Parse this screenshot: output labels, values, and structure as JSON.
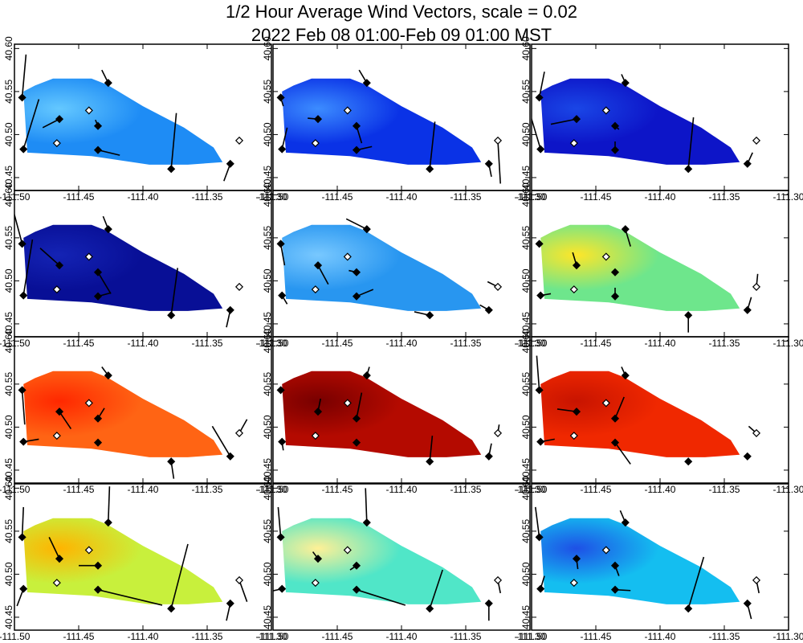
{
  "title": {
    "line1": "1/2 Hour Average Wind Vectors, scale =  0.02",
    "line2": "2022 Feb 08 01:00-Feb 09 01:00 MST"
  },
  "chart_data": {
    "type": "wind-vector-field-panels",
    "rows": 4,
    "cols": 3,
    "xlim": [
      -111.5,
      -111.3
    ],
    "ylim": [
      40.435,
      40.605
    ],
    "xticks": [
      -111.5,
      -111.45,
      -111.4,
      -111.35,
      -111.3
    ],
    "xtick_labels": [
      "-111.50",
      "-111.45",
      "-111.40",
      "-111.35",
      "-111.30"
    ],
    "yticks": [
      40.45,
      40.5,
      40.55,
      40.6
    ],
    "ytick_labels": [
      "40.45",
      "40.50",
      "40.55",
      "40.60"
    ],
    "region_polygon": [
      [
        -111.493,
        40.55
      ],
      [
        -111.484,
        40.557
      ],
      [
        -111.47,
        40.565
      ],
      [
        -111.44,
        40.565
      ],
      [
        -111.428,
        40.558
      ],
      [
        -111.4,
        40.533
      ],
      [
        -111.368,
        40.508
      ],
      [
        -111.345,
        40.485
      ],
      [
        -111.338,
        40.468
      ],
      [
        -111.365,
        40.465
      ],
      [
        -111.395,
        40.465
      ],
      [
        -111.44,
        40.475
      ],
      [
        -111.49,
        40.479
      ]
    ],
    "stations": [
      {
        "lon": -111.494,
        "lat": 40.543,
        "filled": true
      },
      {
        "lon": -111.493,
        "lat": 40.483,
        "filled": true
      },
      {
        "lon": -111.465,
        "lat": 40.518,
        "filled": true
      },
      {
        "lon": -111.467,
        "lat": 40.49,
        "filled": false
      },
      {
        "lon": -111.442,
        "lat": 40.528,
        "filled": false
      },
      {
        "lon": -111.427,
        "lat": 40.56,
        "filled": true
      },
      {
        "lon": -111.435,
        "lat": 40.51,
        "filled": true
      },
      {
        "lon": -111.435,
        "lat": 40.482,
        "filled": true
      },
      {
        "lon": -111.378,
        "lat": 40.46,
        "filled": true
      },
      {
        "lon": -111.332,
        "lat": 40.466,
        "filled": true
      },
      {
        "lon": -111.325,
        "lat": 40.493,
        "filled": false
      }
    ],
    "panels": [
      {
        "fill": "#1e8cf5",
        "hot": "#64c8ff",
        "vectors": [
          [
            0.003,
            0.05
          ],
          [
            0.012,
            0.058
          ],
          [
            -0.013,
            -0.01
          ],
          [
            0,
            0
          ],
          [
            0,
            0
          ],
          [
            -0.005,
            0.015
          ],
          [
            -0.002,
            0.007
          ],
          [
            0.017,
            -0.006
          ],
          [
            0.004,
            0.065
          ],
          [
            -0.005,
            -0.02
          ],
          [
            0,
            0
          ]
        ]
      },
      {
        "fill": "#0a32e6",
        "hot": "#3c8cff",
        "vectors": [
          [
            0.002,
            -0.01
          ],
          [
            0.004,
            0.025
          ],
          [
            -0.008,
            0.001
          ],
          [
            0,
            0
          ],
          [
            0,
            0
          ],
          [
            -0.006,
            0.015
          ],
          [
            0.004,
            -0.02
          ],
          [
            0.012,
            0.004
          ],
          [
            0.004,
            0.055
          ],
          [
            0.002,
            -0.015
          ],
          [
            0.002,
            -0.05
          ]
        ]
      },
      {
        "fill": "#0d15c8",
        "hot": "#1a46e6",
        "vectors": [
          [
            0.004,
            0.03
          ],
          [
            -0.008,
            0.04
          ],
          [
            -0.02,
            -0.006
          ],
          [
            0,
            0
          ],
          [
            0,
            0
          ],
          [
            -0.003,
            0.01
          ],
          [
            0.003,
            -0.004
          ],
          [
            0,
            0.01
          ],
          [
            0.004,
            0.06
          ],
          [
            0.004,
            0.013
          ],
          [
            0,
            0
          ]
        ]
      },
      {
        "fill": "#080f96",
        "hot": "#1423b4",
        "vectors": [
          [
            -0.008,
            0.045
          ],
          [
            0.007,
            0.065
          ],
          [
            -0.015,
            0.02
          ],
          [
            0,
            0
          ],
          [
            0,
            0
          ],
          [
            -0.004,
            0.015
          ],
          [
            0.01,
            -0.025
          ],
          [
            0.01,
            0.004
          ],
          [
            0.005,
            0.055
          ],
          [
            -0.003,
            -0.02
          ],
          [
            0,
            0
          ]
        ]
      },
      {
        "fill": "#2896f0",
        "hot": "#78c8ff",
        "vectors": [
          [
            0.003,
            -0.025
          ],
          [
            0.004,
            -0.01
          ],
          [
            0.008,
            -0.022
          ],
          [
            0,
            0
          ],
          [
            0,
            0
          ],
          [
            -0.016,
            0.012
          ],
          [
            -0.006,
            0.002
          ],
          [
            0.013,
            0.008
          ],
          [
            -0.012,
            0.004
          ],
          [
            -0.007,
            0.006
          ],
          [
            -0.008,
            0.006
          ]
        ]
      },
      {
        "fill": "#6ee68c",
        "hot": "#ffe628",
        "vectors": [
          [
            0,
            0
          ],
          [
            0.008,
            0.002
          ],
          [
            -0.003,
            0.015
          ],
          [
            0,
            0
          ],
          [
            0,
            0
          ],
          [
            0.004,
            -0.02
          ],
          [
            0,
            -0.004
          ],
          [
            0,
            0.01
          ],
          [
            0,
            -0.02
          ],
          [
            0.003,
            0.015
          ],
          [
            0.001,
            0.015
          ]
        ]
      },
      {
        "fill": "#ff6414",
        "hot": "#ff2800",
        "vectors": [
          [
            0.002,
            -0.04
          ],
          [
            0.012,
            0.003
          ],
          [
            0.009,
            -0.02
          ],
          [
            0,
            0
          ],
          [
            0,
            0
          ],
          [
            -0.005,
            0.01
          ],
          [
            0.005,
            0.012
          ],
          [
            0,
            0
          ],
          [
            0.002,
            -0.02
          ],
          [
            -0.014,
            0.035
          ],
          [
            0.006,
            0.016
          ]
        ]
      },
      {
        "fill": "#b40a00",
        "hot": "#780000",
        "vectors": [
          [
            0,
            0
          ],
          [
            0.001,
            -0.01
          ],
          [
            0.002,
            0.015
          ],
          [
            0,
            0
          ],
          [
            0,
            0
          ],
          [
            0.002,
            0.01
          ],
          [
            0.004,
            0.03
          ],
          [
            0,
            0
          ],
          [
            0.002,
            0.03
          ],
          [
            0.002,
            0.015
          ],
          [
            0.001,
            0.01
          ]
        ]
      },
      {
        "fill": "#f02800",
        "hot": "#c81400",
        "vectors": [
          [
            -0.002,
            0.04
          ],
          [
            0.011,
            0.003
          ],
          [
            -0.015,
            0.003
          ],
          [
            0,
            0
          ],
          [
            0,
            0
          ],
          [
            -0.003,
            0.01
          ],
          [
            0.007,
            0.025
          ],
          [
            0.012,
            -0.025
          ],
          [
            0,
            0
          ],
          [
            0,
            0
          ],
          [
            -0.006,
            0.008
          ]
        ]
      },
      {
        "fill": "#c8f03c",
        "hot": "#ffb400",
        "vectors": [
          [
            0.001,
            0.035
          ],
          [
            -0.005,
            -0.02
          ],
          [
            -0.008,
            0.025
          ],
          [
            0,
            0
          ],
          [
            0,
            0
          ],
          [
            0.001,
            0.042
          ],
          [
            -0.015,
            0
          ],
          [
            0.05,
            -0.018
          ],
          [
            0.013,
            0.075
          ],
          [
            -0.003,
            -0.02
          ],
          [
            0.006,
            -0.025
          ]
        ]
      },
      {
        "fill": "#50e6c8",
        "hot": "#fff096",
        "vectors": [
          [
            -0.002,
            0.035
          ],
          [
            -0.015,
            -0.005
          ],
          [
            -0.004,
            0.008
          ],
          [
            0,
            0
          ],
          [
            0,
            0
          ],
          [
            -0.001,
            0.04
          ],
          [
            -0.005,
            -0.005
          ],
          [
            0.038,
            -0.018
          ],
          [
            0.01,
            0.045
          ],
          [
            0,
            -0.02
          ],
          [
            0.002,
            -0.015
          ]
        ]
      },
      {
        "fill": "#14bef0",
        "hot": "#1e50e6",
        "vectors": [
          [
            -0.003,
            0.035
          ],
          [
            0.003,
            0.015
          ],
          [
            0.001,
            -0.012
          ],
          [
            0,
            0
          ],
          [
            0,
            0
          ],
          [
            -0.004,
            0.014
          ],
          [
            0.003,
            -0.012
          ],
          [
            0.012,
            -0.001
          ],
          [
            0.012,
            0.06
          ],
          [
            0.003,
            -0.018
          ],
          [
            0.002,
            -0.015
          ]
        ]
      }
    ]
  }
}
